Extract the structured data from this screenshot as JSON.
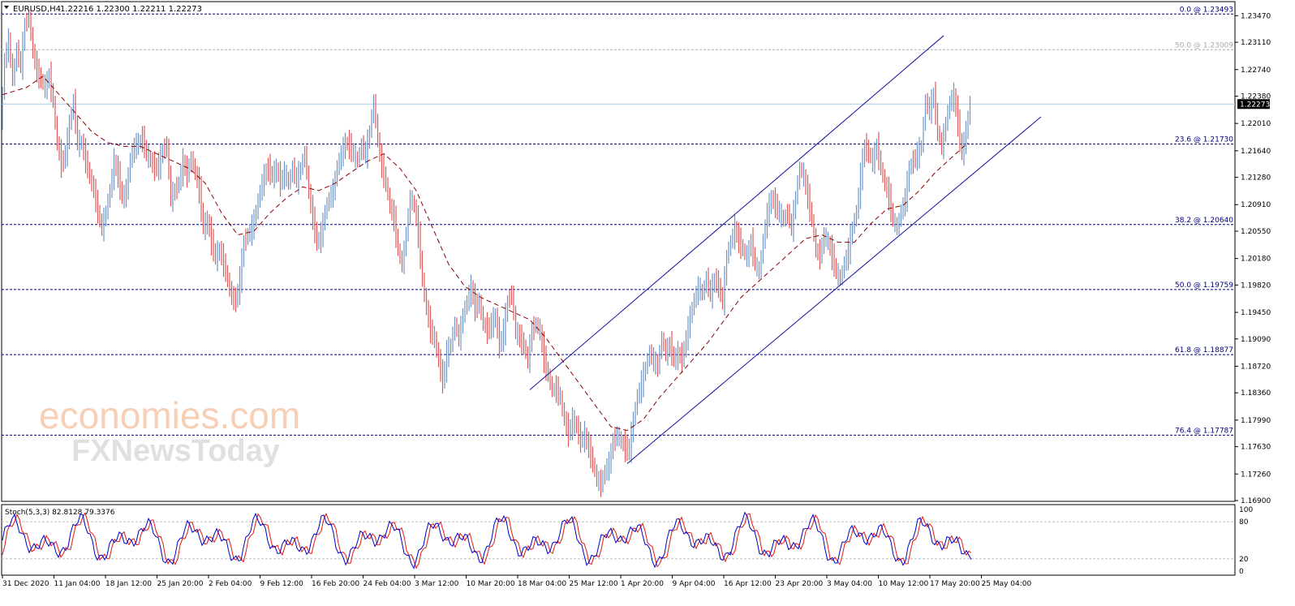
{
  "chart_data": {
    "type": "line",
    "symbol": "EURUSD,H4",
    "ohlc_label": "1.22216 1.22300 1.22211 1.22273",
    "last_price": "1.22273",
    "y_axis": {
      "ylim": [
        1.169,
        1.2365
      ],
      "ticks": [
        "1.23470",
        "1.23110",
        "1.22740",
        "1.22380",
        "1.22010",
        "1.21640",
        "1.21280",
        "1.20910",
        "1.20550",
        "1.20180",
        "1.19820",
        "1.19450",
        "1.19090",
        "1.18720",
        "1.18360",
        "1.17990",
        "1.17630",
        "1.17260",
        "1.16900"
      ]
    },
    "x_axis": {
      "ticks": [
        "31 Dec 2020",
        "11 Jan 04:00",
        "18 Jan 12:00",
        "25 Jan 20:00",
        "2 Feb 04:00",
        "9 Feb 12:00",
        "16 Feb 20:00",
        "24 Feb 04:00",
        "3 Mar 12:00",
        "10 Mar 20:00",
        "18 Mar 04:00",
        "25 Mar 12:00",
        "1 Apr 20:00",
        "9 Apr 04:00",
        "16 Apr 12:00",
        "23 Apr 20:00",
        "3 May 04:00",
        "10 May 12:00",
        "17 May 20:00",
        "25 May 04:00"
      ]
    },
    "price_series": [
      [
        0,
        1.22
      ],
      [
        5,
        1.2285
      ],
      [
        10,
        1.2315
      ],
      [
        15,
        1.226
      ],
      [
        20,
        1.23
      ],
      [
        25,
        1.228
      ],
      [
        30,
        1.2335
      ],
      [
        35,
        1.2345
      ],
      [
        40,
        1.23
      ],
      [
        45,
        1.227
      ],
      [
        50,
        1.226
      ],
      [
        55,
        1.225
      ],
      [
        60,
        1.2265
      ],
      [
        65,
        1.223
      ],
      [
        70,
        1.2175
      ],
      [
        75,
        1.2145
      ],
      [
        80,
        1.216
      ],
      [
        85,
        1.22
      ],
      [
        90,
        1.223
      ],
      [
        95,
        1.2175
      ],
      [
        100,
        1.2175
      ],
      [
        105,
        1.215
      ],
      [
        110,
        1.213
      ],
      [
        115,
        1.211
      ],
      [
        120,
        1.208
      ],
      [
        125,
        1.206
      ],
      [
        130,
        1.208
      ],
      [
        135,
        1.211
      ],
      [
        140,
        1.215
      ],
      [
        145,
        1.213
      ],
      [
        150,
        1.21
      ],
      [
        155,
        1.211
      ],
      [
        160,
        1.215
      ],
      [
        165,
        1.217
      ],
      [
        170,
        1.2175
      ],
      [
        175,
        1.218
      ],
      [
        180,
        1.216
      ],
      [
        185,
        1.215
      ],
      [
        190,
        1.214
      ],
      [
        195,
        1.2145
      ],
      [
        200,
        1.2165
      ],
      [
        205,
        1.217
      ],
      [
        210,
        1.21
      ],
      [
        215,
        1.211
      ],
      [
        220,
        1.212
      ],
      [
        225,
        1.215
      ],
      [
        230,
        1.213
      ],
      [
        235,
        1.2155
      ],
      [
        240,
        1.2135
      ],
      [
        245,
        1.211
      ],
      [
        250,
        1.206
      ],
      [
        255,
        1.207
      ],
      [
        260,
        1.204
      ],
      [
        265,
        1.202
      ],
      [
        270,
        1.203
      ],
      [
        275,
        1.201
      ],
      [
        280,
        1.199
      ],
      [
        285,
        1.1965
      ],
      [
        290,
        1.196
      ],
      [
        295,
        1.199
      ],
      [
        300,
        1.204
      ],
      [
        305,
        1.205
      ],
      [
        310,
        1.206
      ],
      [
        315,
        1.208
      ],
      [
        320,
        1.211
      ],
      [
        325,
        1.213
      ],
      [
        330,
        1.214
      ],
      [
        335,
        1.213
      ],
      [
        340,
        1.214
      ],
      [
        345,
        1.212
      ],
      [
        350,
        1.2135
      ],
      [
        355,
        1.212
      ],
      [
        360,
        1.214
      ],
      [
        365,
        1.2125
      ],
      [
        370,
        1.214
      ],
      [
        375,
        1.216
      ],
      [
        380,
        1.211
      ],
      [
        385,
        1.207
      ],
      [
        390,
        1.204
      ],
      [
        395,
        1.205
      ],
      [
        400,
        1.208
      ],
      [
        405,
        1.21
      ],
      [
        410,
        1.211
      ],
      [
        415,
        1.214
      ],
      [
        420,
        1.216
      ],
      [
        425,
        1.2175
      ],
      [
        430,
        1.217
      ],
      [
        435,
        1.216
      ],
      [
        440,
        1.215
      ],
      [
        445,
        1.217
      ],
      [
        450,
        1.216
      ],
      [
        455,
        1.219
      ],
      [
        460,
        1.223
      ],
      [
        465,
        1.218
      ],
      [
        470,
        1.214
      ],
      [
        475,
        1.212
      ],
      [
        480,
        1.209
      ],
      [
        485,
        1.207
      ],
      [
        490,
        1.203
      ],
      [
        495,
        1.201
      ],
      [
        500,
        1.205
      ],
      [
        505,
        1.21
      ],
      [
        510,
        1.209
      ],
      [
        515,
        1.205
      ],
      [
        520,
        1.199
      ],
      [
        525,
        1.195
      ],
      [
        530,
        1.192
      ],
      [
        535,
        1.191
      ],
      [
        540,
        1.188
      ],
      [
        545,
        1.185
      ],
      [
        550,
        1.189
      ],
      [
        555,
        1.19
      ],
      [
        560,
        1.193
      ],
      [
        565,
        1.191
      ],
      [
        570,
        1.194
      ],
      [
        575,
        1.196
      ],
      [
        580,
        1.198
      ],
      [
        585,
        1.195
      ],
      [
        590,
        1.196
      ],
      [
        595,
        1.193
      ],
      [
        600,
        1.192
      ],
      [
        605,
        1.193
      ],
      [
        610,
        1.194
      ],
      [
        615,
        1.19
      ],
      [
        620,
        1.192
      ],
      [
        625,
        1.196
      ],
      [
        630,
        1.197
      ],
      [
        635,
        1.192
      ],
      [
        640,
        1.191
      ],
      [
        645,
        1.19
      ],
      [
        650,
        1.188
      ],
      [
        655,
        1.192
      ],
      [
        660,
        1.193
      ],
      [
        665,
        1.192
      ],
      [
        670,
        1.188
      ],
      [
        675,
        1.186
      ],
      [
        680,
        1.184
      ],
      [
        685,
        1.184
      ],
      [
        690,
        1.183
      ],
      [
        695,
        1.18
      ],
      [
        700,
        1.178
      ],
      [
        705,
        1.18
      ],
      [
        710,
        1.179
      ],
      [
        715,
        1.177
      ],
      [
        720,
        1.178
      ],
      [
        725,
        1.176
      ],
      [
        730,
        1.174
      ],
      [
        735,
        1.172
      ],
      [
        740,
        1.171
      ],
      [
        745,
        1.173
      ],
      [
        750,
        1.174
      ],
      [
        755,
        1.177
      ],
      [
        760,
        1.178
      ],
      [
        765,
        1.177
      ],
      [
        770,
        1.176
      ],
      [
        775,
        1.176
      ],
      [
        780,
        1.18
      ],
      [
        785,
        1.183
      ],
      [
        790,
        1.185
      ],
      [
        795,
        1.187
      ],
      [
        800,
        1.189
      ],
      [
        805,
        1.188
      ],
      [
        810,
        1.187
      ],
      [
        815,
        1.191
      ],
      [
        820,
        1.189
      ],
      [
        825,
        1.19
      ],
      [
        830,
        1.188
      ],
      [
        835,
        1.189
      ],
      [
        840,
        1.188
      ],
      [
        845,
        1.191
      ],
      [
        850,
        1.194
      ],
      [
        855,
        1.196
      ],
      [
        860,
        1.198
      ],
      [
        865,
        1.197
      ],
      [
        870,
        1.199
      ],
      [
        875,
        1.197
      ],
      [
        880,
        1.199
      ],
      [
        885,
        1.198
      ],
      [
        890,
        1.196
      ],
      [
        895,
        1.202
      ],
      [
        900,
        1.204
      ],
      [
        905,
        1.206
      ],
      [
        910,
        1.204
      ],
      [
        915,
        1.203
      ],
      [
        920,
        1.202
      ],
      [
        925,
        1.204
      ],
      [
        930,
        1.201
      ],
      [
        935,
        1.2
      ],
      [
        940,
        1.204
      ],
      [
        945,
        1.208
      ],
      [
        950,
        1.21
      ],
      [
        955,
        1.209
      ],
      [
        960,
        1.208
      ],
      [
        965,
        1.207
      ],
      [
        970,
        1.208
      ],
      [
        975,
        1.206
      ],
      [
        980,
        1.21
      ],
      [
        985,
        1.214
      ],
      [
        990,
        1.213
      ],
      [
        995,
        1.21
      ],
      [
        1000,
        1.207
      ],
      [
        1005,
        1.203
      ],
      [
        1010,
        1.202
      ],
      [
        1015,
        1.205
      ],
      [
        1020,
        1.204
      ],
      [
        1025,
        1.202
      ],
      [
        1030,
        1.2
      ],
      [
        1035,
        1.199
      ],
      [
        1040,
        1.201
      ],
      [
        1045,
        1.203
      ],
      [
        1050,
        1.206
      ],
      [
        1055,
        1.208
      ],
      [
        1060,
        1.213
      ],
      [
        1065,
        1.217
      ],
      [
        1070,
        1.216
      ],
      [
        1075,
        1.215
      ],
      [
        1080,
        1.217
      ],
      [
        1085,
        1.214
      ],
      [
        1090,
        1.212
      ],
      [
        1095,
        1.21
      ],
      [
        1100,
        1.207
      ],
      [
        1105,
        1.206
      ],
      [
        1110,
        1.208
      ],
      [
        1115,
        1.21
      ],
      [
        1120,
        1.214
      ],
      [
        1125,
        1.215
      ],
      [
        1130,
        1.216
      ],
      [
        1135,
        1.217
      ],
      [
        1140,
        1.223
      ],
      [
        1145,
        1.222
      ],
      [
        1150,
        1.224
      ],
      [
        1155,
        1.219
      ],
      [
        1160,
        1.217
      ],
      [
        1165,
        1.22
      ],
      [
        1170,
        1.223
      ],
      [
        1175,
        1.224
      ],
      [
        1180,
        1.22
      ],
      [
        1185,
        1.216
      ],
      [
        1190,
        1.219
      ],
      [
        1195,
        1.2227
      ]
    ],
    "ma_series": [
      [
        0,
        1.224
      ],
      [
        30,
        1.225
      ],
      [
        50,
        1.2265
      ],
      [
        70,
        1.224
      ],
      [
        90,
        1.2215
      ],
      [
        110,
        1.219
      ],
      [
        130,
        1.2175
      ],
      [
        150,
        1.217
      ],
      [
        170,
        1.217
      ],
      [
        190,
        1.216
      ],
      [
        210,
        1.215
      ],
      [
        230,
        1.214
      ],
      [
        250,
        1.212
      ],
      [
        270,
        1.208
      ],
      [
        290,
        1.205
      ],
      [
        310,
        1.2055
      ],
      [
        330,
        1.208
      ],
      [
        350,
        1.21
      ],
      [
        370,
        1.2115
      ],
      [
        390,
        1.211
      ],
      [
        410,
        1.212
      ],
      [
        430,
        1.2135
      ],
      [
        450,
        1.215
      ],
      [
        470,
        1.216
      ],
      [
        490,
        1.214
      ],
      [
        510,
        1.211
      ],
      [
        530,
        1.206
      ],
      [
        550,
        1.201
      ],
      [
        570,
        1.198
      ],
      [
        590,
        1.1965
      ],
      [
        610,
        1.1955
      ],
      [
        630,
        1.1945
      ],
      [
        650,
        1.1935
      ],
      [
        670,
        1.191
      ],
      [
        690,
        1.188
      ],
      [
        710,
        1.185
      ],
      [
        730,
        1.182
      ],
      [
        750,
        1.179
      ],
      [
        770,
        1.1785
      ],
      [
        790,
        1.18
      ],
      [
        810,
        1.183
      ],
      [
        830,
        1.1855
      ],
      [
        850,
        1.188
      ],
      [
        870,
        1.1905
      ],
      [
        890,
        1.1935
      ],
      [
        910,
        1.1965
      ],
      [
        930,
        1.1985
      ],
      [
        950,
        1.2005
      ],
      [
        970,
        1.2025
      ],
      [
        990,
        1.2045
      ],
      [
        1010,
        1.205
      ],
      [
        1030,
        1.204
      ],
      [
        1050,
        1.204
      ],
      [
        1070,
        1.2065
      ],
      [
        1090,
        1.2085
      ],
      [
        1110,
        1.209
      ],
      [
        1130,
        1.211
      ],
      [
        1150,
        1.2135
      ],
      [
        1170,
        1.2155
      ],
      [
        1190,
        1.2175
      ]
    ],
    "fib_levels": [
      {
        "label": "0.0 @ 1.23493",
        "value": 1.23493,
        "color": "#00007a"
      },
      {
        "label": "50.0 @ 1.23009",
        "value": 1.23009,
        "color": "#a9a9a9"
      },
      {
        "label": "23.6 @ 1.21730",
        "value": 1.2173,
        "color": "#00007a"
      },
      {
        "label": "38.2 @ 1.20640",
        "value": 1.2064,
        "color": "#00007a"
      },
      {
        "label": "50.0 @ 1.19759",
        "value": 1.19759,
        "color": "#00007a"
      },
      {
        "label": "61.8 @ 1.18877",
        "value": 1.18877,
        "color": "#00007a"
      },
      {
        "label": "76.4 @ 1.17787",
        "value": 1.17787,
        "color": "#00007a"
      }
    ],
    "channel": {
      "upper": [
        [
          650,
          1.184
        ],
        [
          1160,
          1.232
        ]
      ],
      "lower": [
        [
          770,
          1.174
        ],
        [
          1280,
          1.221
        ]
      ],
      "color": "#1010a0"
    },
    "grid": false,
    "colors": {
      "up": "#6f94c8",
      "down": "#e05a5a",
      "ma": "#8b0000",
      "fib_line": "#00007a",
      "horizontal": "#a8c8e0"
    }
  },
  "stochastic": {
    "label": "Stoch(5,3,3) 82.8128 79.3376",
    "ticks": [
      "100",
      "80",
      "20",
      "0"
    ],
    "ylim": [
      0,
      100
    ],
    "k_color": "#0000c8",
    "d_color": "#e01818"
  },
  "watermark": {
    "line1": "economies.com",
    "line2": "FXNewsToday"
  }
}
